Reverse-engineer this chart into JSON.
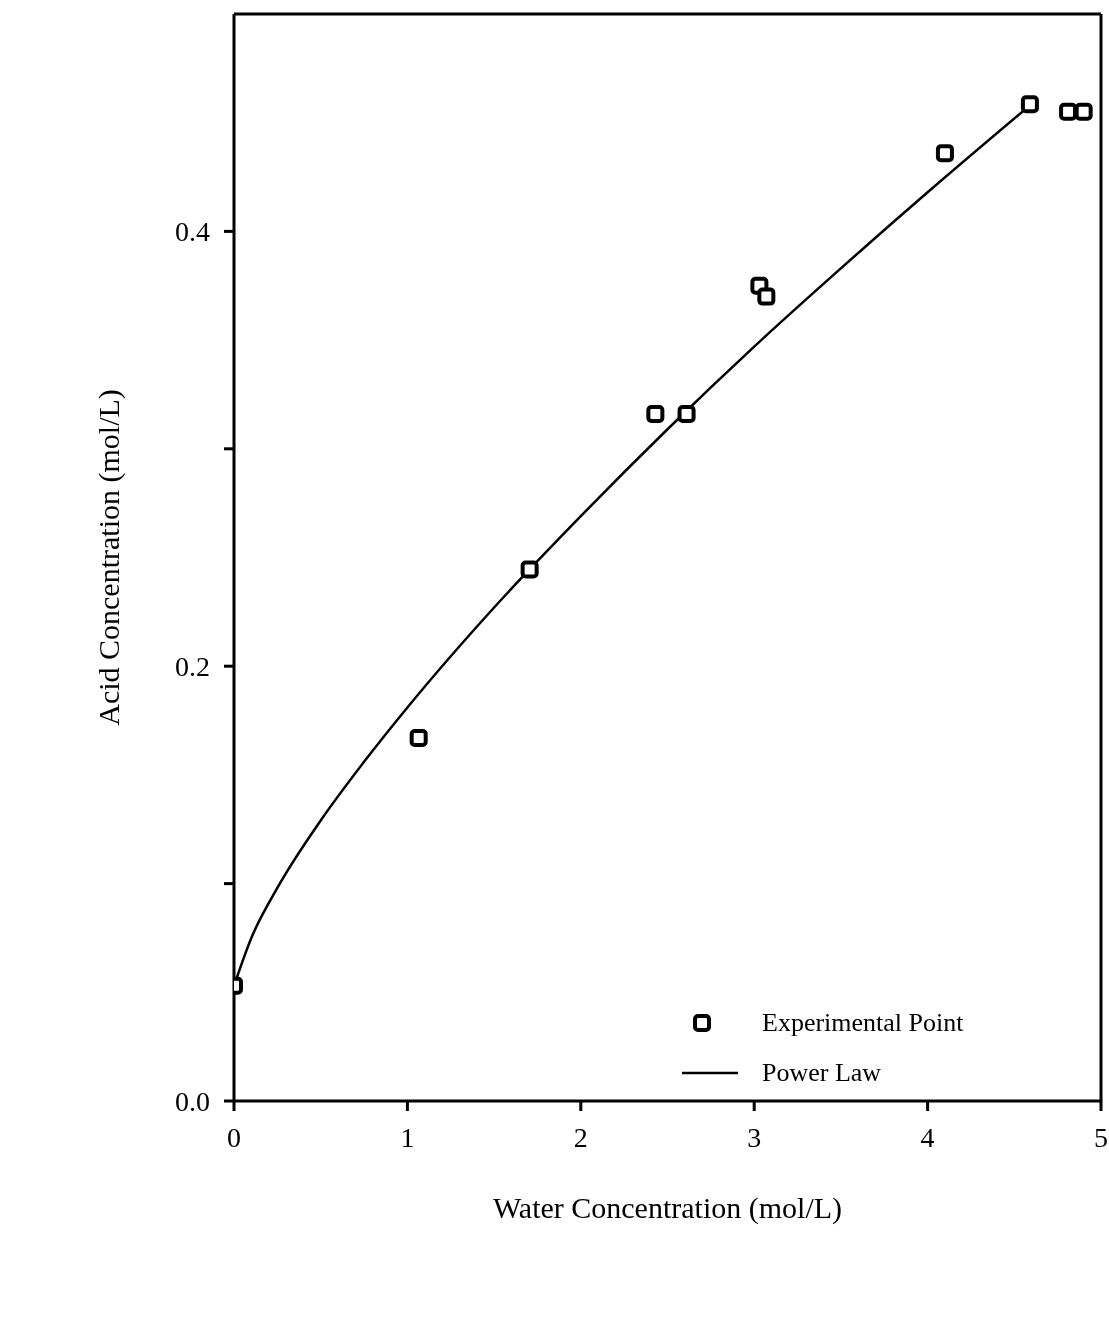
{
  "chart_data": {
    "type": "scatter",
    "xlabel": "Water Concentration  (mol/L)",
    "ylabel": "Acid Concentration  (mol/L)",
    "xlim": [
      0,
      5
    ],
    "xticks": [
      0,
      1,
      2,
      3,
      4,
      5
    ],
    "ylim": [
      0,
      0.5
    ],
    "yticks": [
      {
        "value": 0,
        "label": "0.0"
      },
      {
        "value": 0.1,
        "label": null
      },
      0.2,
      {
        "value": 0.3,
        "label": null
      },
      0.4
    ],
    "grid": false,
    "legend": "bottom right",
    "series": [
      {
        "name": "Experimental Point",
        "color": "#000000",
        "marker": "square",
        "x": [
          0,
          1.065,
          1.705,
          2.43,
          2.61,
          3.03,
          3.07,
          4.1,
          4.59,
          4.81,
          4.9
        ],
        "values": [
          0.053,
          0.167,
          0.2445,
          0.316,
          0.316,
          0.375,
          0.37,
          0.436,
          0.4585,
          0.455,
          0.455
        ]
      },
      {
        "name": "Power Law",
        "type": "line",
        "color": "#000000",
        "line_style": "solid",
        "marker": "none",
        "x": [
          0,
          0.1,
          0.25,
          0.5,
          0.75,
          1,
          1.5,
          2,
          2.5,
          3,
          3.5,
          4,
          4.59
        ],
        "values": [
          0.053,
          0.075,
          0.098,
          0.129,
          0.156,
          0.181,
          0.227,
          0.269,
          0.309,
          0.347,
          0.383,
          0.418,
          0.458
        ]
      }
    ]
  }
}
